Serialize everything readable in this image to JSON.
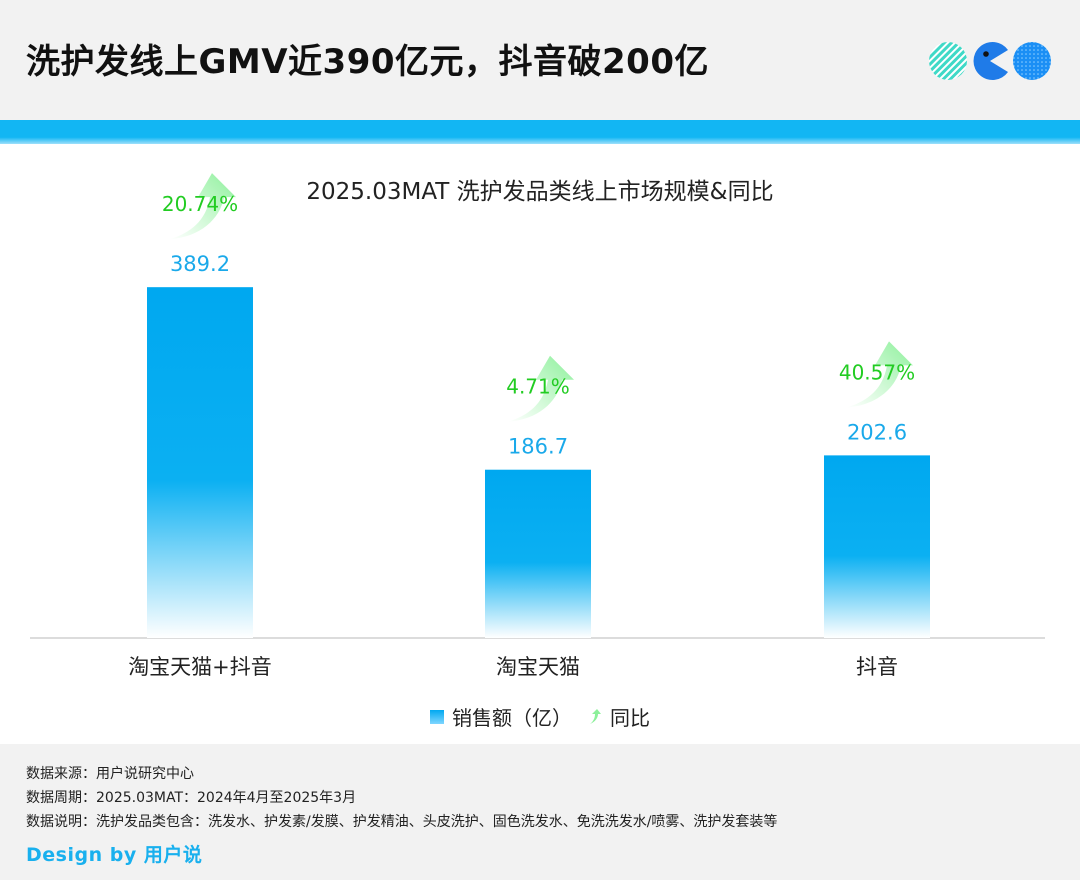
{
  "header": {
    "headline": "洗护发线上GMV近390亿元，抖音破200亿"
  },
  "colors": {
    "bar_top": "#00a8f0",
    "bar_bottom": "#ffffff",
    "value_label": "#1aa9ea",
    "yoy_label": "#22cc22",
    "band": "#12b6f3",
    "brand": "#19b0ee"
  },
  "chart_data": {
    "type": "bar",
    "title": "2025.03MAT 洗护发品类线上市场规模&同比",
    "categories": [
      "淘宝天猫+抖音",
      "淘宝天猫",
      "抖音"
    ],
    "series": [
      {
        "name": "销售额（亿）",
        "values": [
          389.2,
          186.7,
          202.6
        ]
      },
      {
        "name": "同比",
        "values": [
          20.74,
          4.71,
          40.57
        ],
        "labels": [
          "20.74%",
          "4.71%",
          "40.57%"
        ]
      }
    ],
    "value_labels": [
      "389.2",
      "186.7",
      "202.6"
    ],
    "xlabel": "",
    "ylabel": "",
    "ylim": [
      0,
      450
    ],
    "grid": false,
    "legend_position": "bottom"
  },
  "legend": {
    "sales_label": "销售额（亿）",
    "yoy_label": "同比"
  },
  "footer": {
    "source": "数据来源：用户说研究中心",
    "period": "数据周期：2025.03MAT：2024年4月至2025年3月",
    "note": "数据说明：洗护发品类包含：洗发水、护发素/发膜、护发精油、头皮洗护、固色洗发水、免洗洗发水/喷雾、洗护发套装等"
  },
  "brand": {
    "label": "Design by 用户说"
  }
}
